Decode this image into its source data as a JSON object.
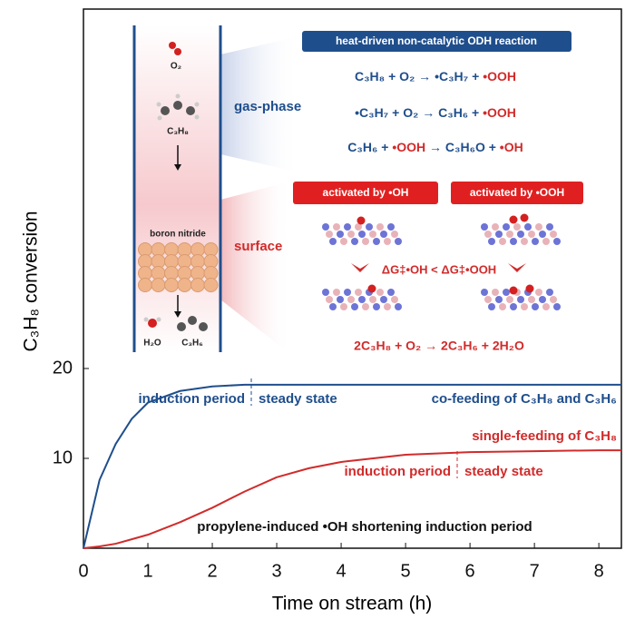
{
  "chart_data": {
    "type": "line",
    "xlabel": "Time on stream (h)",
    "ylabel": "C₃H₈ conversion",
    "x": [
      0,
      0.25,
      0.5,
      0.75,
      1,
      1.5,
      2,
      2.5,
      3,
      3.5,
      4,
      5,
      6,
      7,
      8,
      8.35
    ],
    "series": [
      {
        "name": "co-feeding of C₃H₈ and C₃H₆",
        "color": "#1f4e8c",
        "values": [
          0,
          7.6,
          11.6,
          14.4,
          16.2,
          17.5,
          18.0,
          18.2,
          18.2,
          18.2,
          18.2,
          18.2,
          18.2,
          18.2,
          18.2,
          18.2
        ]
      },
      {
        "name": "single-feeding of C₃H₈",
        "color": "#d12b2b",
        "values": [
          0,
          0.2,
          0.5,
          1.0,
          1.5,
          2.9,
          4.5,
          6.3,
          7.9,
          8.9,
          9.6,
          10.4,
          10.7,
          10.8,
          10.9,
          10.9
        ]
      }
    ],
    "xlim": [
      0,
      8.35
    ],
    "xticks": [
      0,
      1,
      2,
      3,
      4,
      5,
      6,
      7,
      8
    ],
    "ylim": [
      0,
      60
    ],
    "yticks": [
      10,
      20
    ],
    "annotations": [
      "induction period",
      "steady state",
      "induction period",
      "steady state",
      "propylene-induced •OH shortening induction period"
    ],
    "inset": {
      "gas_label": "gas-phase",
      "surface_label": "surface",
      "o2": "O₂",
      "c3h8": "C₃H₈",
      "catalyst": "boron nitride",
      "h2o": "H₂O",
      "c3h6": "C₃H₆",
      "header": "heat-driven non-catalytic ODH reaction",
      "equations": [
        [
          "C₃H₈ + O₂ → •C₃H₇ + ",
          "•OOH"
        ],
        [
          "•C₃H₇ + O₂ → C₃H₆ + ",
          "•OOH"
        ],
        [
          "C₃H₆ + ",
          "•OOH",
          " → C₃H₆O + ",
          "•OH"
        ]
      ],
      "activated": [
        "activated by •OH",
        "activated by •OOH"
      ],
      "energy": "ΔG‡•OH < ΔG‡•OOH",
      "overall": "2C₃H₈ + O₂ → 2C₃H₆ + 2H₂O"
    }
  }
}
